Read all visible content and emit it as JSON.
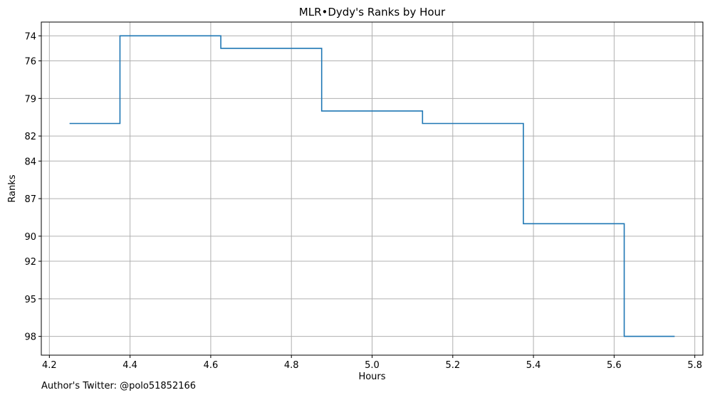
{
  "footnote": "Author's Twitter: @polo51852166",
  "chart_data": {
    "type": "line",
    "step": "post",
    "title": "MLR•Dydy's Ranks by Hour",
    "xlabel": "Hours",
    "ylabel": "Ranks",
    "xlim": [
      4.18,
      5.82
    ],
    "ylim": [
      99.5,
      72.9
    ],
    "y_inverted": true,
    "grid": true,
    "line_color": "#1f77b4",
    "x_ticks": [
      4.2,
      4.4,
      4.6,
      4.8,
      5.0,
      5.2,
      5.4,
      5.6,
      5.8
    ],
    "x_tick_labels": [
      "4.2",
      "4.4",
      "4.6",
      "4.8",
      "5.0",
      "5.2",
      "5.4",
      "5.6",
      "5.8"
    ],
    "y_ticks": [
      74,
      76,
      79,
      82,
      84,
      87,
      90,
      92,
      95,
      98
    ],
    "y_tick_labels": [
      "74",
      "76",
      "79",
      "82",
      "84",
      "87",
      "90",
      "92",
      "95",
      "98"
    ],
    "x": [
      4.25,
      4.375,
      4.625,
      4.875,
      5.125,
      5.375,
      5.625,
      5.75
    ],
    "y": [
      81,
      74,
      75,
      80,
      81,
      89,
      98,
      98
    ]
  }
}
